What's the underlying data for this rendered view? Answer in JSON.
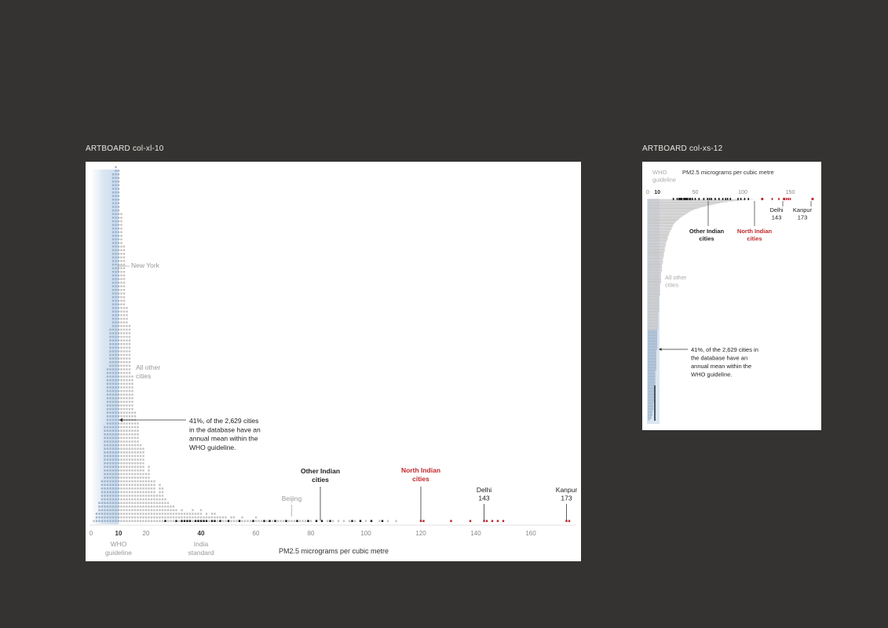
{
  "artboards": {
    "large_label": "ARTBOARD  col-xl-10",
    "small_label": "ARTBOARD  col-xs-12"
  },
  "colors": {
    "background": "#353331",
    "other_cities": "#c4c4c4",
    "who_cities": "#9fb4cb",
    "indian_cities": "#222222",
    "north_indian": "#c0272d",
    "who_band": "#dbe6f2",
    "annotation_grey": "#9a9a9a"
  },
  "chart_data": [
    {
      "type": "bar",
      "variant": "stacked-dot histogram",
      "xlabel": "PM2.5 micrograms per cubic metre",
      "xlim": [
        0,
        175
      ],
      "xticks": [
        0,
        10,
        20,
        40,
        60,
        80,
        100,
        120,
        140,
        160
      ],
      "bold_ticks": [
        10,
        40
      ],
      "tick_notes": [
        {
          "x": 10,
          "label": [
            "WHO",
            "guideline"
          ]
        },
        {
          "x": 40,
          "label": [
            "India",
            "standard"
          ]
        }
      ],
      "grid": false,
      "legend": "none",
      "series": [
        {
          "name": "All other cities",
          "color_key": "other_cities",
          "bins": [
            [
              1,
              1
            ],
            [
              2,
              3
            ],
            [
              3,
              6
            ],
            [
              4,
              12
            ],
            [
              5,
              27
            ],
            [
              6,
              43
            ],
            [
              7,
              54
            ],
            [
              8,
              97
            ],
            [
              9,
              99
            ],
            [
              10,
              98
            ],
            [
              11,
              86
            ],
            [
              12,
              77
            ],
            [
              13,
              60
            ],
            [
              14,
              55
            ],
            [
              15,
              41
            ],
            [
              16,
              31
            ],
            [
              17,
              28
            ],
            [
              18,
              22
            ],
            [
              19,
              21
            ],
            [
              20,
              14
            ],
            [
              21,
              16
            ],
            [
              22,
              12
            ],
            [
              23,
              12
            ],
            [
              24,
              8
            ],
            [
              25,
              11
            ],
            [
              26,
              10
            ],
            [
              27,
              7
            ],
            [
              28,
              6
            ],
            [
              29,
              5
            ],
            [
              30,
              5
            ],
            [
              31,
              4
            ],
            [
              32,
              3
            ],
            [
              33,
              4
            ],
            [
              34,
              3
            ],
            [
              35,
              3
            ],
            [
              36,
              3
            ],
            [
              37,
              4
            ],
            [
              38,
              3
            ],
            [
              39,
              3
            ],
            [
              40,
              4
            ],
            [
              41,
              2
            ],
            [
              42,
              3
            ],
            [
              43,
              2
            ],
            [
              44,
              3
            ],
            [
              45,
              3
            ],
            [
              46,
              2
            ],
            [
              47,
              2
            ],
            [
              48,
              2
            ],
            [
              49,
              2
            ],
            [
              50,
              1
            ],
            [
              51,
              2
            ],
            [
              52,
              2
            ],
            [
              53,
              1
            ],
            [
              54,
              1
            ],
            [
              55,
              2
            ],
            [
              56,
              1
            ],
            [
              57,
              1
            ],
            [
              58,
              1
            ],
            [
              59,
              1
            ],
            [
              60,
              2
            ],
            [
              61,
              1
            ],
            [
              62,
              1
            ],
            [
              63,
              1
            ],
            [
              64,
              1
            ],
            [
              65,
              1
            ],
            [
              66,
              1
            ],
            [
              67,
              1
            ],
            [
              68,
              1
            ],
            [
              69,
              1
            ],
            [
              70,
              1
            ],
            [
              71,
              1
            ],
            [
              72,
              1
            ],
            [
              73,
              1
            ],
            [
              74,
              1
            ],
            [
              75,
              1
            ],
            [
              76,
              1
            ],
            [
              77,
              1
            ],
            [
              78,
              1
            ],
            [
              79,
              1
            ],
            [
              80,
              1
            ],
            [
              82,
              1
            ],
            [
              84,
              1
            ],
            [
              86,
              1
            ],
            [
              88,
              1
            ],
            [
              90,
              1
            ],
            [
              92,
              1
            ],
            [
              94,
              1
            ],
            [
              96,
              1
            ],
            [
              98,
              1
            ],
            [
              100,
              1
            ],
            [
              102,
              1
            ],
            [
              105,
              1
            ],
            [
              108,
              1
            ],
            [
              111,
              1
            ]
          ]
        },
        {
          "name": "Other Indian cities",
          "color_key": "indian_cities",
          "points": [
            27,
            31,
            33,
            34,
            35,
            36,
            38,
            39,
            40,
            41,
            42,
            44,
            45,
            47,
            50,
            54,
            59,
            63,
            65,
            67,
            71,
            75,
            79,
            82,
            84,
            87,
            95,
            98,
            102,
            106
          ]
        },
        {
          "name": "North Indian cities",
          "color_key": "north_indian",
          "points": [
            120,
            121,
            131,
            138,
            143,
            144,
            146,
            148,
            150,
            173,
            174
          ]
        }
      ],
      "annotations": {
        "new_york": {
          "x": 9,
          "text": "New York"
        },
        "beijing": {
          "x": 73,
          "text": "Beijing"
        },
        "all_other": [
          "All other",
          "cities"
        ],
        "other_indian": [
          "Other Indian",
          "cities"
        ],
        "north_indian": [
          "North Indian",
          "cities"
        ],
        "delhi": {
          "x": 143,
          "lines": [
            "Delhi",
            "143"
          ]
        },
        "kanpur": {
          "x": 173,
          "lines": [
            "Kanpur",
            "173"
          ]
        },
        "callout": [
          "41%, of the 2,629 cities",
          "in the database have an",
          "annual mean within the",
          "WHO guideline."
        ]
      }
    },
    {
      "type": "bar",
      "variant": "rotated stacked-dot histogram",
      "title": "PM2.5 micrograms per cubic metre",
      "xticks": [
        0,
        10,
        50,
        100,
        150
      ],
      "bold_ticks": [
        10
      ],
      "tick_notes": [
        {
          "x": 10,
          "label": [
            "WHO",
            "guideline"
          ]
        }
      ],
      "grid": false,
      "legend": "none",
      "annotations": {
        "all_other": [
          "All other",
          "cities"
        ],
        "other_indian": [
          "Other Indian",
          "cities"
        ],
        "north_indian": [
          "North Indian",
          "cities"
        ],
        "delhi": [
          "Delhi",
          "143"
        ],
        "kanpur": [
          "Kanpur",
          "173"
        ],
        "callout": [
          "41%, of the 2,629 cities in",
          "the database have an",
          "annual mean within the",
          "WHO guideline."
        ]
      }
    }
  ]
}
